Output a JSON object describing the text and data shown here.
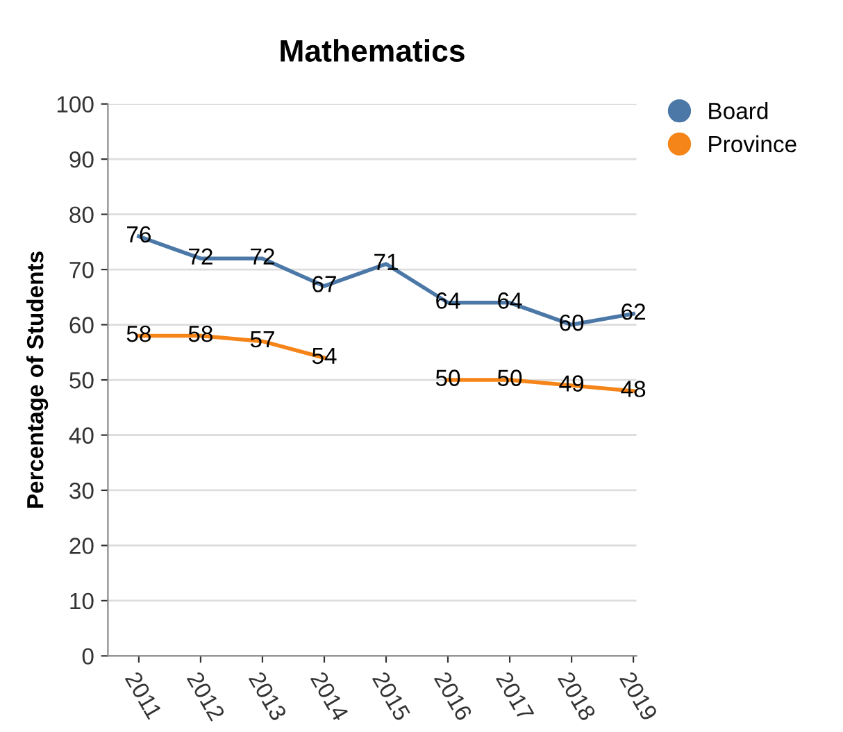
{
  "chart_data": {
    "type": "line",
    "title": "Mathematics",
    "ylabel": "Percentage of Students",
    "categories": [
      "2011",
      "2012",
      "2013",
      "2014",
      "2015",
      "2016",
      "2017",
      "2018",
      "2019"
    ],
    "series": [
      {
        "name": "Board",
        "color": "#4c78a8",
        "values": [
          76,
          72,
          72,
          67,
          71,
          64,
          64,
          60,
          62
        ]
      },
      {
        "name": "Province",
        "color": "#f58518",
        "values": [
          58,
          58,
          57,
          54,
          null,
          50,
          50,
          49,
          48
        ]
      }
    ],
    "ylim": [
      0,
      100
    ],
    "yticks": [
      0,
      10,
      20,
      30,
      40,
      50,
      60,
      70,
      80,
      90,
      100
    ],
    "grid": "y",
    "legend": "top right",
    "data_labels": true
  }
}
